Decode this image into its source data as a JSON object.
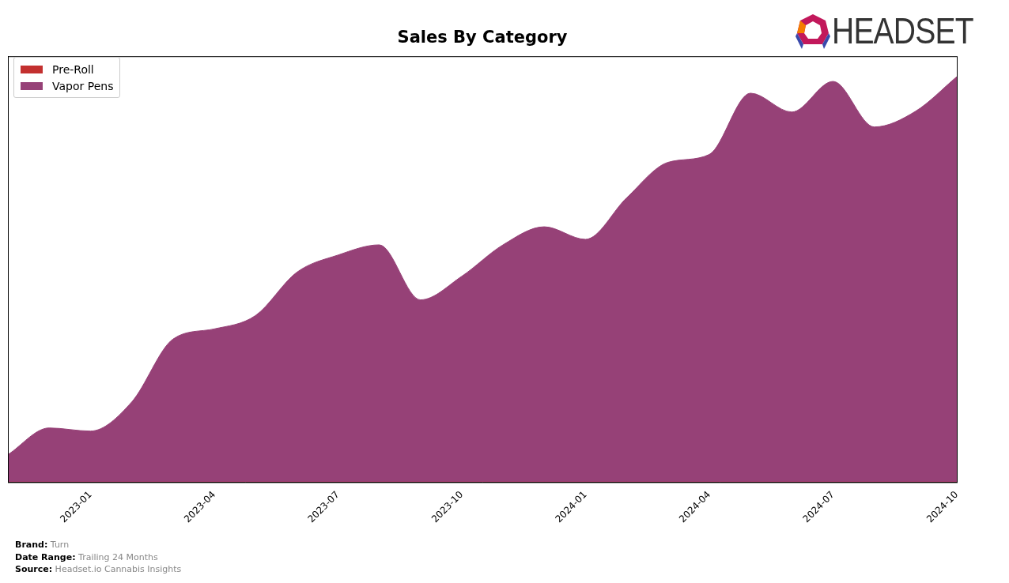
{
  "chart_data": {
    "type": "area",
    "title": "Sales By Category",
    "categories": [
      null,
      null,
      "2023-01",
      null,
      null,
      "2023-04",
      null,
      null,
      "2023-07",
      null,
      null,
      "2023-10",
      null,
      null,
      "2024-01",
      null,
      null,
      "2024-04",
      null,
      null,
      "2024-07",
      null,
      null,
      "2024-10"
    ],
    "series": [
      {
        "name": "Pre-Roll",
        "color": "#c3302f",
        "values": [
          0,
          0,
          0,
          0,
          0,
          0,
          0,
          0,
          0,
          0,
          0,
          0,
          0,
          0,
          0,
          0,
          0,
          0,
          0,
          0,
          0,
          0,
          0,
          0
        ]
      },
      {
        "name": "Vapor Pens",
        "color": "#964177",
        "values": [
          35,
          69,
          65,
          102,
          182,
          195,
          212,
          267,
          289,
          302,
          232,
          262,
          302,
          325,
          309,
          362,
          407,
          417,
          495,
          471,
          510,
          452,
          472,
          516
        ]
      }
    ],
    "ylim": [
      0,
      542
    ],
    "stacked": true,
    "grid": false,
    "legend": "upper left",
    "tick_labels": "x"
  },
  "logo_text": "HEADSET",
  "footer": [
    {
      "label": "Brand:",
      "value": "Turn"
    },
    {
      "label": "Date Range:",
      "value": "Trailing 24 Months"
    },
    {
      "label": "Source:",
      "value": "Headset.io Cannabis Insights"
    }
  ]
}
